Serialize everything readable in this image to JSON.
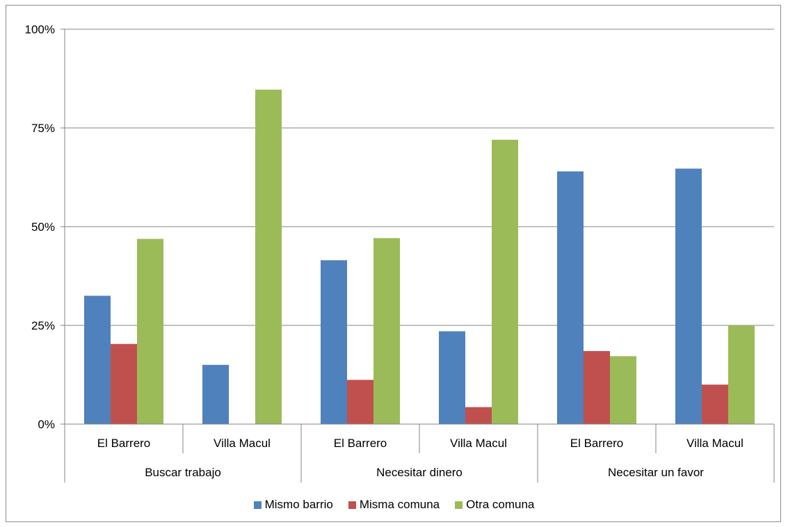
{
  "chart_data": {
    "type": "bar",
    "groups": [
      {
        "label": "Buscar trabajo",
        "categories": [
          "El Barrero",
          "Villa Macul"
        ]
      },
      {
        "label": "Necesitar dinero",
        "categories": [
          "El Barrero",
          "Villa Macul"
        ]
      },
      {
        "label": "Necesitar un favor",
        "categories": [
          "El Barrero",
          "Villa Macul"
        ]
      }
    ],
    "categories": [
      "El Barrero",
      "Villa Macul",
      "El Barrero",
      "Villa Macul",
      "El Barrero",
      "Villa Macul"
    ],
    "series": [
      {
        "name": "Mismo barrio",
        "color": "#4F81BD",
        "values": [
          32.5,
          15.0,
          41.5,
          23.5,
          64.0,
          64.7
        ]
      },
      {
        "name": "Misma comuna",
        "color": "#C0504D",
        "values": [
          20.3,
          0,
          11.2,
          4.3,
          18.5,
          10.0
        ]
      },
      {
        "name": "Otra comuna",
        "color": "#9BBB59",
        "values": [
          46.9,
          84.7,
          47.1,
          72.0,
          17.2,
          25.0
        ]
      }
    ],
    "y_ticks": [
      "0%",
      "25%",
      "50%",
      "75%",
      "100%"
    ],
    "ylim": [
      0,
      100
    ],
    "grid": true,
    "legend_position": "bottom"
  }
}
